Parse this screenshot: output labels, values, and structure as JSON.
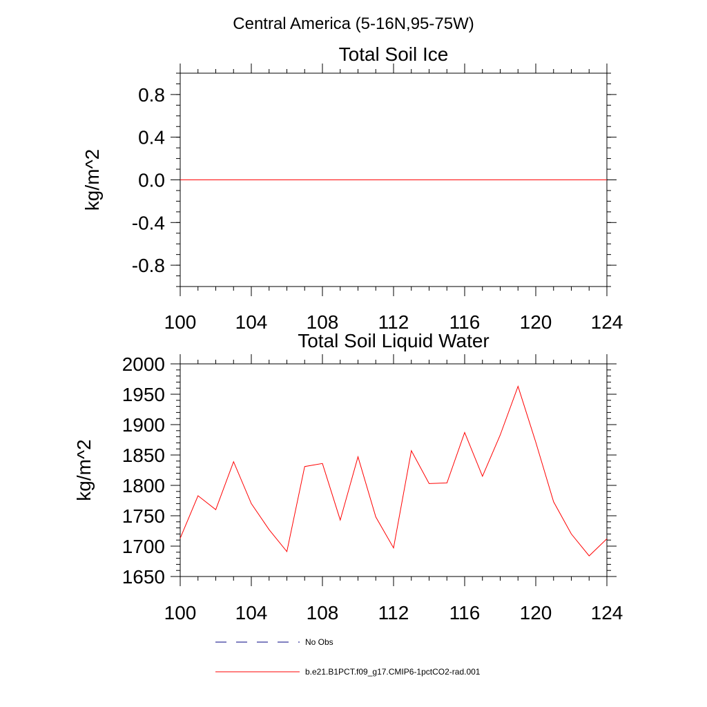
{
  "figure_title": "Central America (5-16N,95-75W)",
  "colors": {
    "series": "#ff0000",
    "obs": "#000080",
    "axes": "#000000"
  },
  "legend": {
    "obs_label": "No Obs",
    "series_label": "b.e21.B1PCT.f09_g17.CMIP6-1pctCO2-rad.001"
  },
  "chart_data": [
    {
      "type": "line",
      "title": "Total Soil Ice",
      "xlabel": "",
      "ylabel": "kg/m^2",
      "xlim": [
        100,
        124
      ],
      "ylim": [
        -1.0,
        1.0
      ],
      "x_ticks": [
        100,
        104,
        108,
        112,
        116,
        120,
        124
      ],
      "x_tick_labels": [
        "100",
        "104",
        "108",
        "112",
        "116",
        "120",
        "124"
      ],
      "y_ticks": [
        0.8,
        0.4,
        0.0,
        -0.4,
        -0.8
      ],
      "y_tick_labels": [
        "0.8",
        "0.4",
        "0.0",
        "-0.4",
        "-0.8"
      ],
      "grid": false,
      "series": [
        {
          "name": "b.e21.B1PCT.f09_g17.CMIP6-1pctCO2-rad.001",
          "x": [
            100,
            101,
            102,
            103,
            104,
            105,
            106,
            107,
            108,
            109,
            110,
            111,
            112,
            113,
            114,
            115,
            116,
            117,
            118,
            119,
            120,
            121,
            122,
            123,
            124
          ],
          "values": [
            0,
            0,
            0,
            0,
            0,
            0,
            0,
            0,
            0,
            0,
            0,
            0,
            0,
            0,
            0,
            0,
            0,
            0,
            0,
            0,
            0,
            0,
            0,
            0,
            0
          ]
        }
      ]
    },
    {
      "type": "line",
      "title": "Total Soil Liquid Water",
      "xlabel": "",
      "ylabel": "kg/m^2",
      "xlim": [
        100,
        124
      ],
      "ylim": [
        1650,
        2000
      ],
      "x_ticks": [
        100,
        104,
        108,
        112,
        116,
        120,
        124
      ],
      "x_tick_labels": [
        "100",
        "104",
        "108",
        "112",
        "116",
        "120",
        "124"
      ],
      "y_ticks": [
        2000,
        1950,
        1900,
        1850,
        1800,
        1750,
        1700,
        1650
      ],
      "y_tick_labels": [
        "2000",
        "1950",
        "1900",
        "1850",
        "1800",
        "1750",
        "1700",
        "1650"
      ],
      "grid": false,
      "series": [
        {
          "name": "b.e21.B1PCT.f09_g17.CMIP6-1pctCO2-rad.001",
          "x": [
            100,
            101,
            102,
            103,
            104,
            105,
            106,
            107,
            108,
            109,
            110,
            111,
            112,
            113,
            114,
            115,
            116,
            117,
            118,
            119,
            120,
            121,
            122,
            123,
            124
          ],
          "values": [
            1713,
            1783,
            1760,
            1839,
            1770,
            1727,
            1691,
            1831,
            1836,
            1743,
            1847,
            1748,
            1697,
            1857,
            1803,
            1804,
            1887,
            1815,
            1883,
            1963,
            1871,
            1773,
            1720,
            1684,
            1712
          ]
        }
      ]
    }
  ]
}
